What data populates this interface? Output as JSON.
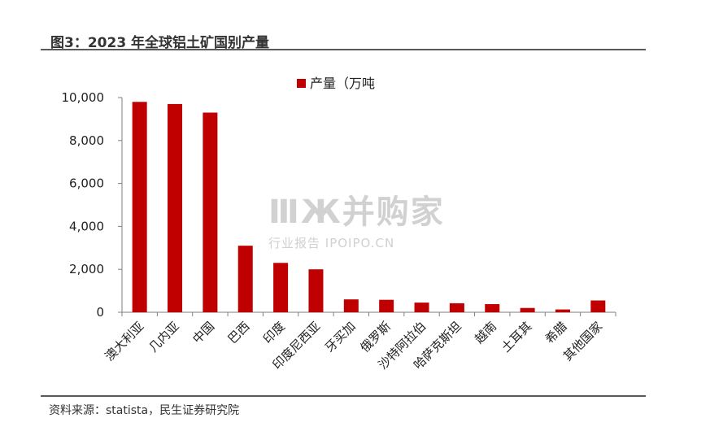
{
  "figure": {
    "title": "图3：2023 年全球铝土矿国别产量",
    "source": "资料来源：statista，民生证券研究院"
  },
  "watermark": {
    "main": "ⅢЖ并购家",
    "sub": "行业报告 IPOIPO.CN"
  },
  "colors": {
    "bar": "#c00000",
    "axis": "#7f7f7f",
    "text": "#222222"
  },
  "chart_data": {
    "type": "bar",
    "categories": [
      "澳大利亚",
      "几内亚",
      "中国",
      "巴西",
      "印度",
      "印度尼西亚",
      "牙买加",
      "俄罗斯",
      "沙特阿拉伯",
      "哈萨克斯坦",
      "越南",
      "土耳其",
      "希腊",
      "其他国家"
    ],
    "series": [
      {
        "name": "产量（万吨",
        "values": [
          9800,
          9700,
          9300,
          3100,
          2300,
          2000,
          600,
          580,
          450,
          420,
          380,
          200,
          130,
          550
        ]
      }
    ],
    "ylim": [
      0,
      10000
    ],
    "yticks": [
      0,
      2000,
      4000,
      6000,
      8000,
      10000
    ],
    "ytick_labels": [
      "0",
      "2,000",
      "4,000",
      "6,000",
      "8,000",
      "10,000"
    ],
    "xlabel": "",
    "ylabel": "",
    "legend": "top-center",
    "grid": false
  }
}
